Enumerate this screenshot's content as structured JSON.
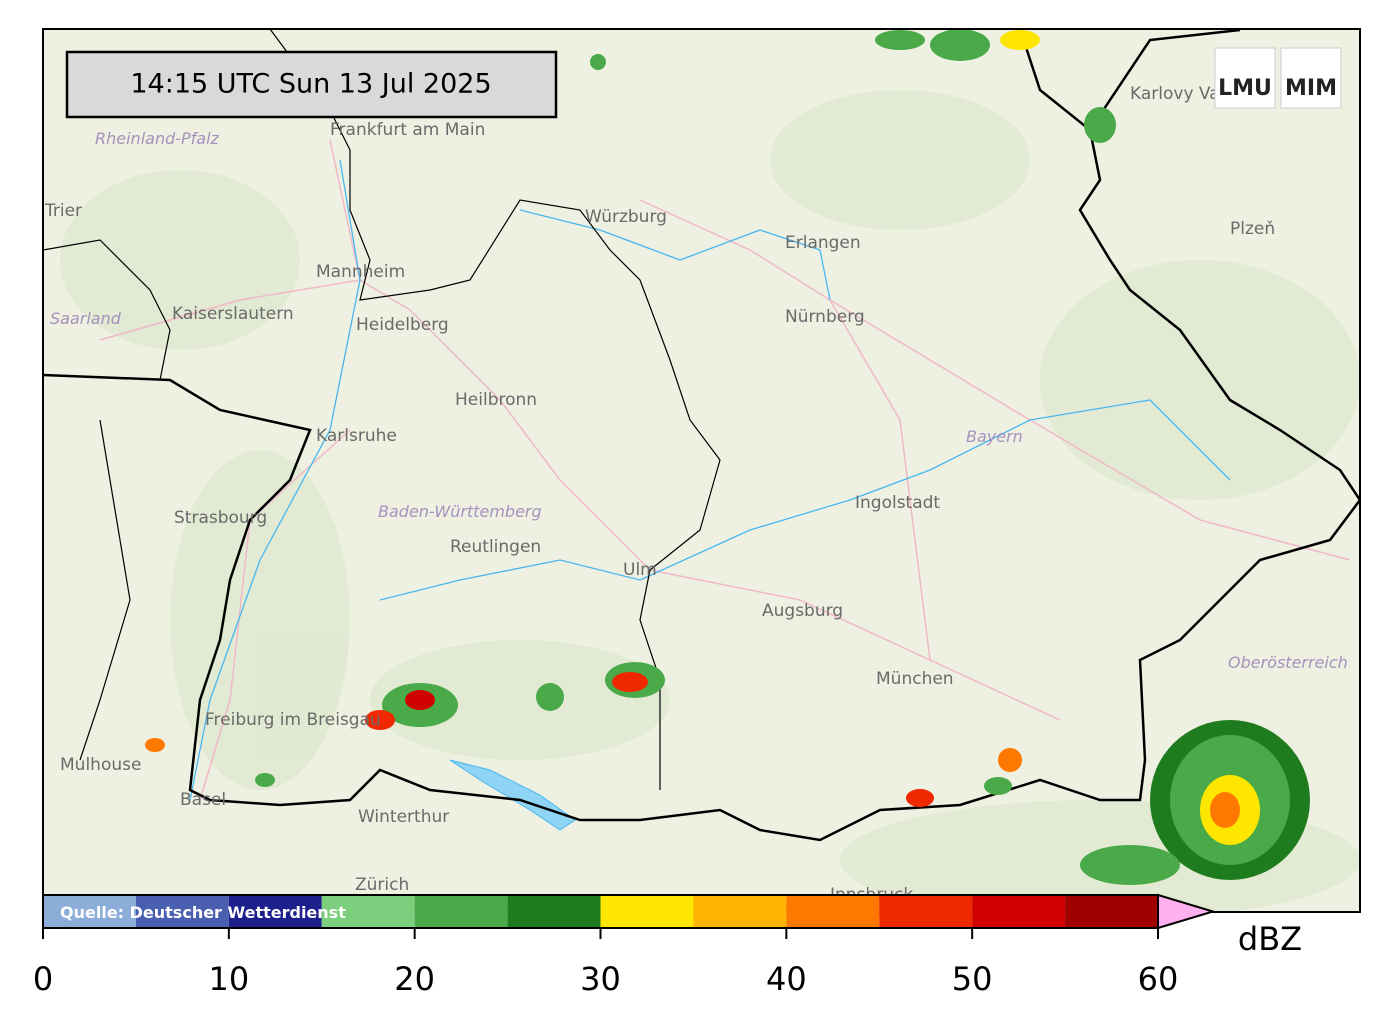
{
  "timestamp": "14:15 UTC  Sun 13 Jul 2025",
  "logo": [
    "LMU",
    "MIM"
  ],
  "places": [
    "Frankfurt am Main",
    "Mannheim",
    "Kaiserslautern",
    "Heidelberg",
    "Saarland",
    "Trier",
    "Rheinland-Pfalz",
    "Würzburg",
    "Erlangen",
    "Nürnberg",
    "Heilbronn",
    "Karlsruhe",
    "Strasbourg",
    "Baden-Württemberg",
    "Reutlingen",
    "Ulm",
    "Ingolstadt",
    "Bayern",
    "Augsburg",
    "München",
    "Freiburg im Breisgau",
    "Mulhouse",
    "Basel",
    "Winterthur",
    "Zürich",
    "Karlovy Vary",
    "Plzeň",
    "Oberösterreich",
    "Innsbruck"
  ],
  "colorbar": {
    "source": "Quelle: Deutscher Wetterdienst",
    "unit": "dBZ",
    "bounds": [
      0,
      5,
      10,
      15,
      20,
      25,
      30,
      35,
      40,
      45,
      50,
      55,
      60
    ],
    "colors": [
      "#8cadd8",
      "#4a5fb0",
      "#1c1f8c",
      "#7ccf7c",
      "#4aaa4a",
      "#1e7b1e",
      "#ffe600",
      "#ffb400",
      "#ff7800",
      "#f02800",
      "#d00000",
      "#a00000"
    ],
    "extend_color": "#ffb0f0",
    "ticks": [
      0,
      10,
      20,
      30,
      40,
      50,
      60
    ]
  }
}
